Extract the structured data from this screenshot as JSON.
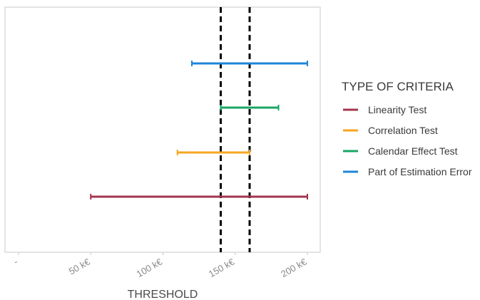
{
  "chart_data": {
    "type": "errorbar",
    "xlabel": "THRESHOLD",
    "xlim": [
      -5,
      205
    ],
    "x_ticks": [
      {
        "value": 0,
        "label": "-"
      },
      {
        "value": 50,
        "label": "50 k€"
      },
      {
        "value": 100,
        "label": "100 k€"
      },
      {
        "value": 150,
        "label": "150 k€"
      },
      {
        "value": 200,
        "label": "200 k€"
      }
    ],
    "reference_lines": [
      140,
      160
    ],
    "reference_line_style": "dashed",
    "grid": false,
    "legend": {
      "title": "TYPE OF CRITERIA",
      "position": "right"
    },
    "series": [
      {
        "name": "Linearity Test",
        "color": "#a3354e",
        "low": 50,
        "high": 200
      },
      {
        "name": "Correlation Test",
        "color": "#f5a623",
        "low": 110,
        "high": 160
      },
      {
        "name": "Calendar Effect Test",
        "color": "#1aa564",
        "low": 140,
        "high": 180
      },
      {
        "name": "Part of Estimation Error",
        "color": "#1f85d8",
        "low": 120,
        "high": 200
      }
    ]
  }
}
